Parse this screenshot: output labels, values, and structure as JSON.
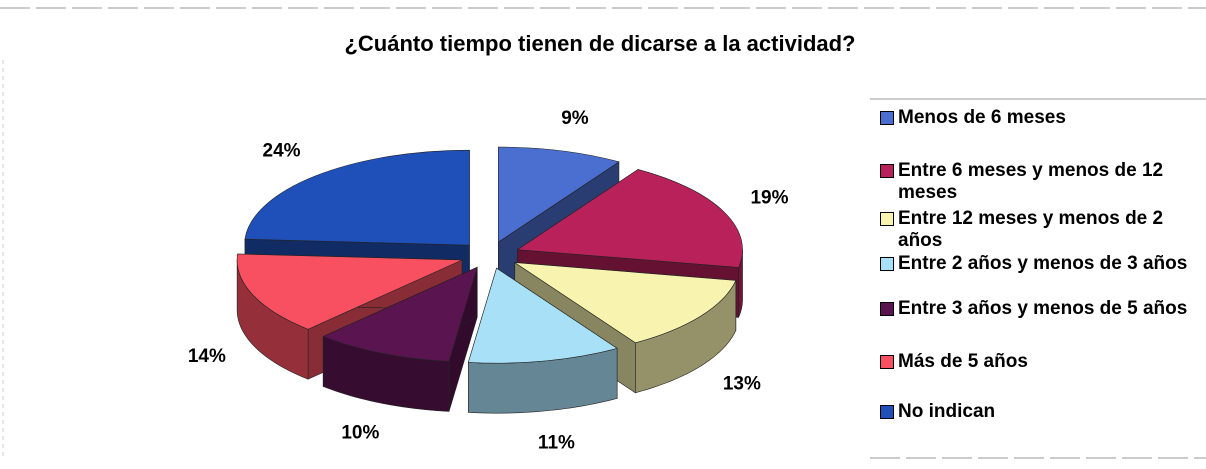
{
  "chart_data": {
    "type": "pie",
    "title": "¿Cuánto tiempo tienen de dicarse a la actividad?",
    "categories": [
      "Menos de 6 meses",
      "Entre 6 meses y menos de 12 meses",
      "Entre 12 meses  y menos de 2 años",
      "Entre 2 años y menos de 3 años",
      "Entre 3 años y menos de 5 años",
      "Más de 5 años",
      "No indican"
    ],
    "values": [
      9,
      19,
      13,
      11,
      10,
      14,
      24
    ],
    "value_labels": [
      "9%",
      "19%",
      "13%",
      "11%",
      "10%",
      "14%",
      "24%"
    ],
    "colors": [
      "#4a6fd0",
      "#b8215a",
      "#f8f4b0",
      "#a8e0f8",
      "#5a1450",
      "#f85060",
      "#1f4fb8"
    ],
    "legend": "right"
  }
}
